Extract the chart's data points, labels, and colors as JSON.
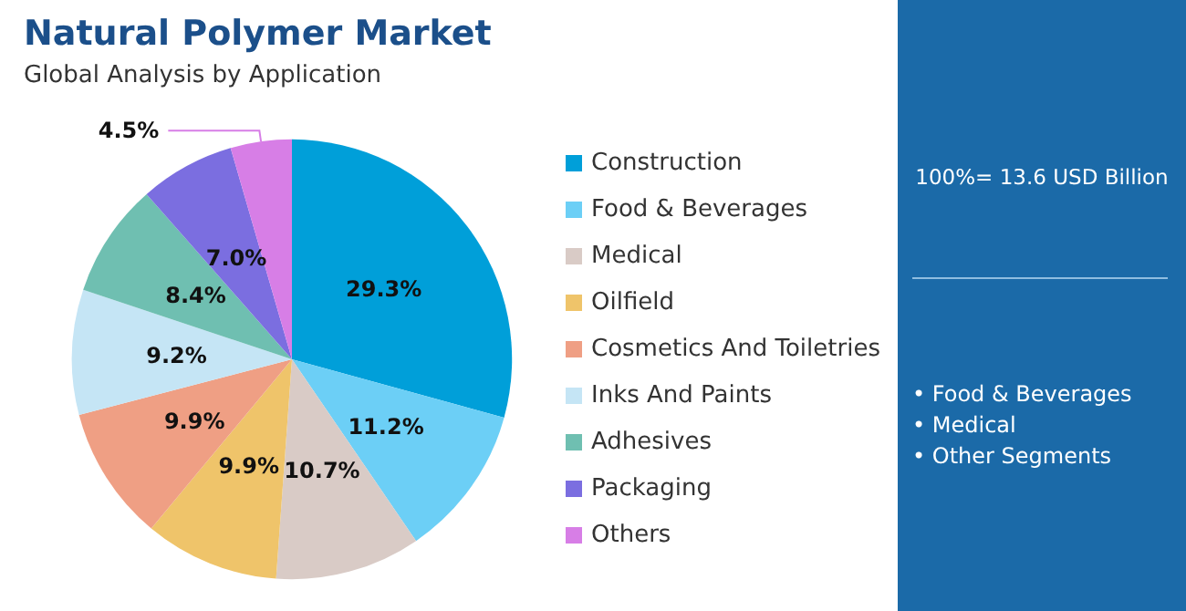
{
  "chart_data": {
    "type": "pie",
    "title": "Natural Polymer Market",
    "subtitle": "Global Analysis by Application",
    "categories": [
      "Construction",
      "Food & Beverages",
      "Medical",
      "Oilfield",
      "Cosmetics And Toiletries",
      "Inks And Paints",
      "Adhesives",
      "Packaging",
      "Others"
    ],
    "values": [
      29.3,
      11.2,
      10.7,
      9.9,
      9.9,
      9.2,
      8.4,
      7.0,
      4.5
    ],
    "colors": [
      "#009fd9",
      "#6ccff6",
      "#d9cbc6",
      "#efc46a",
      "#ef9f84",
      "#c5e5f5",
      "#6fbfb1",
      "#7b6ee0",
      "#d77ee6"
    ],
    "value_labels": [
      "29.3%",
      "11.2%",
      "10.7%",
      "9.9%",
      "9.9%",
      "9.2%",
      "8.4%",
      "7.0%",
      "4.5%"
    ],
    "legend": "right",
    "annotations": [
      "100%= 13.6 USD Billion",
      "• Food & Beverages",
      "• Medical",
      "• Other Segments"
    ]
  }
}
